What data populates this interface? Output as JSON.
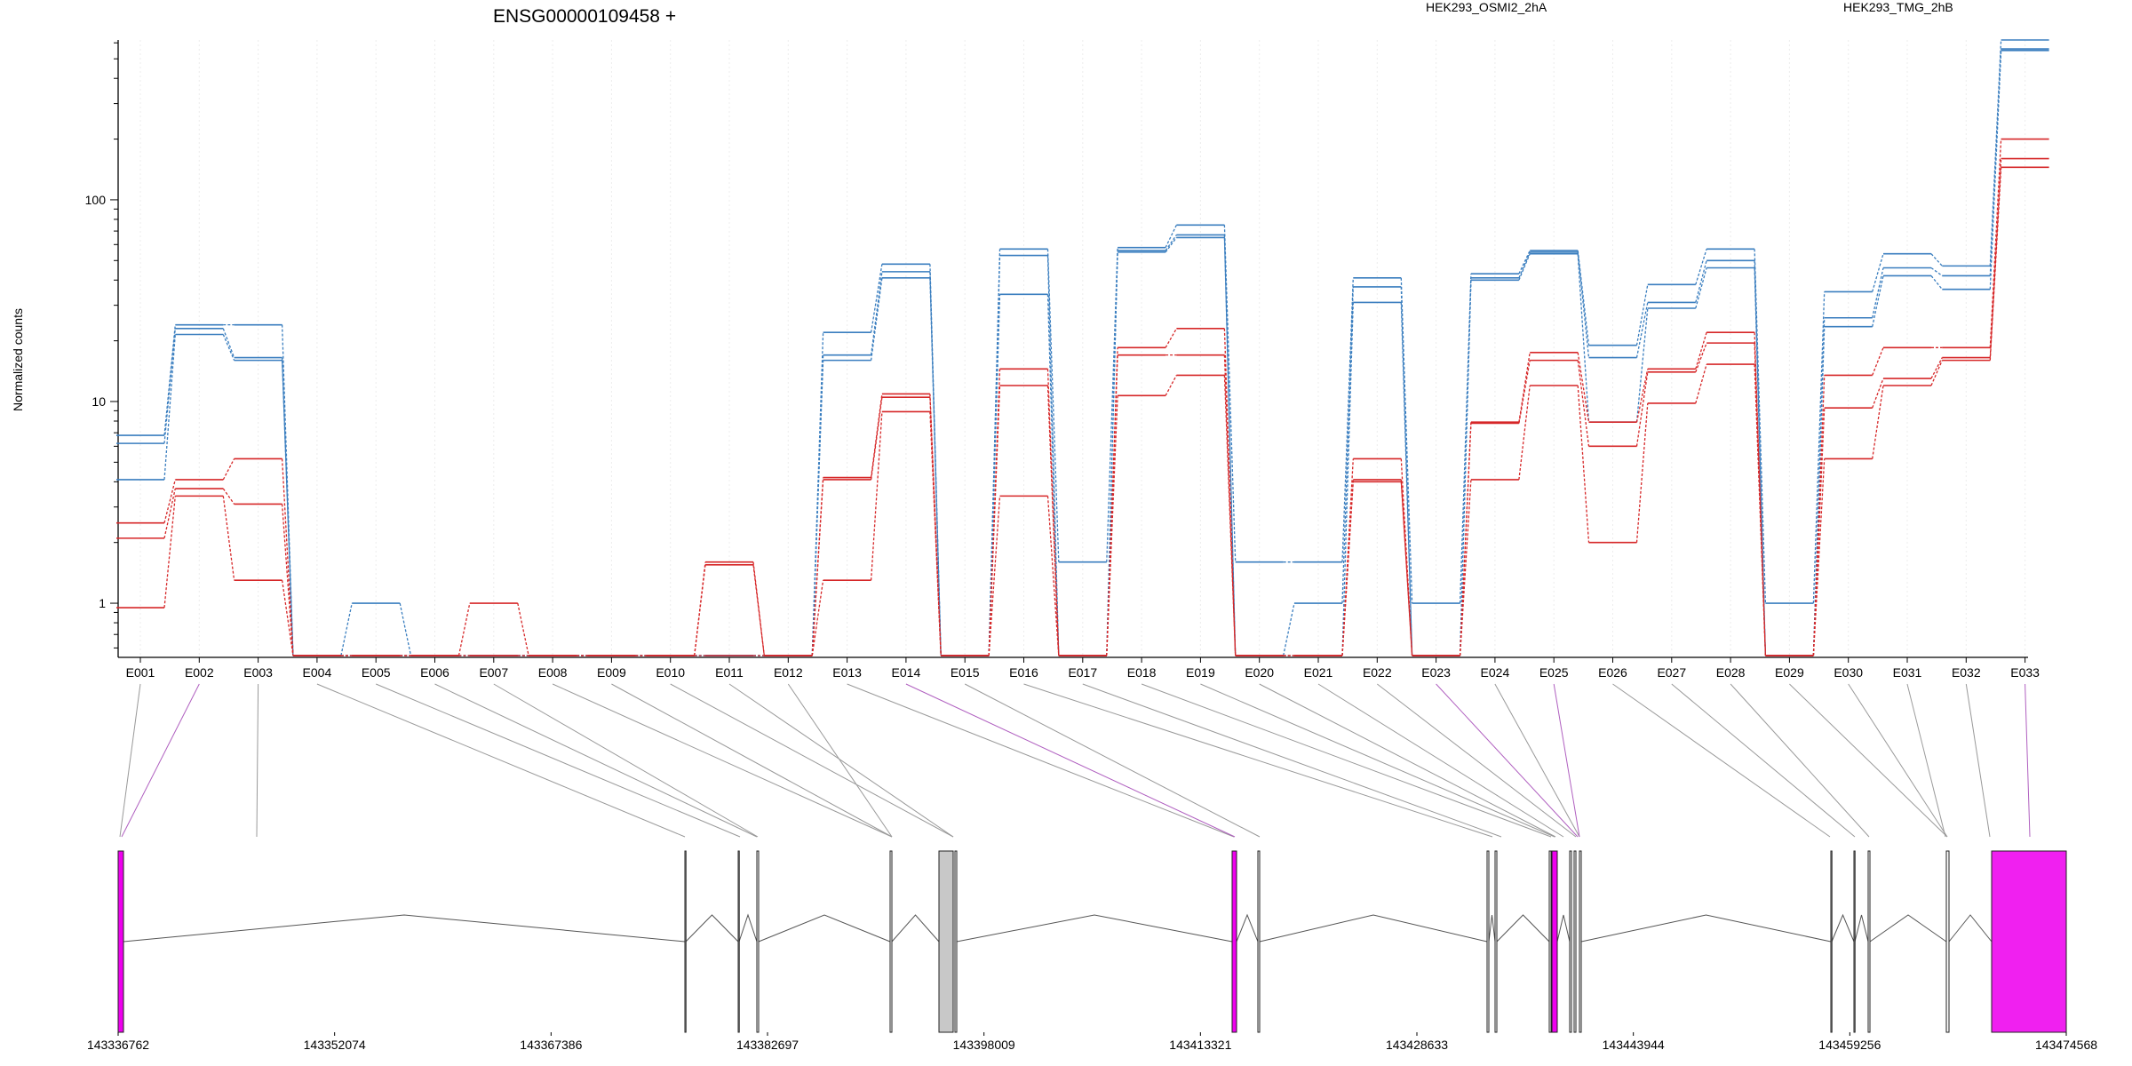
{
  "chart_data": {
    "type": "line",
    "title": "ENSG00000109458 +",
    "ylabel": "Normalized counts",
    "xlabel": "",
    "yscale": "log",
    "ylim": [
      0.55,
      620
    ],
    "y_ticks": [
      1,
      10,
      100
    ],
    "y_tick_labels": [
      "1",
      "10",
      "100"
    ],
    "grid": "vertical dotted lines at each exon",
    "legend": "top-right, text only",
    "categories": [
      "E001",
      "E002",
      "E003",
      "E004",
      "E005",
      "E006",
      "E007",
      "E008",
      "E009",
      "E010",
      "E011",
      "E012",
      "E013",
      "E014",
      "E015",
      "E016",
      "E017",
      "E018",
      "E019",
      "E020",
      "E021",
      "E022",
      "E023",
      "E024",
      "E025",
      "E026",
      "E027",
      "E028",
      "E029",
      "E030",
      "E031",
      "E032",
      "E033"
    ],
    "groups": [
      {
        "name": "HEK293_OSMI2_2hA",
        "color": "#d62728"
      },
      {
        "name": "HEK293_TMG_2hB",
        "color": "#3a7ebf"
      }
    ],
    "series": [
      {
        "group": "HEK293_TMG_2hB",
        "values": [
          6.8,
          24,
          24,
          0.55,
          1.0,
          0.55,
          0.55,
          0.55,
          0.55,
          0.55,
          0.55,
          0.55,
          22,
          48,
          0.55,
          57,
          1.6,
          58,
          75,
          1.6,
          1.6,
          41,
          1.0,
          43,
          56,
          19,
          38,
          57,
          1.0,
          35,
          54,
          47,
          620
        ]
      },
      {
        "group": "HEK293_TMG_2hB",
        "values": [
          6.2,
          23,
          16.5,
          0.55,
          0.55,
          0.55,
          0.55,
          0.55,
          0.55,
          0.55,
          0.55,
          0.55,
          17,
          44,
          0.55,
          53,
          0.55,
          56,
          67,
          0.55,
          1.0,
          37,
          0.55,
          41,
          55,
          16.5,
          31,
          50,
          0.55,
          26,
          46,
          42,
          560
        ]
      },
      {
        "group": "HEK293_TMG_2hB",
        "values": [
          4.1,
          21.5,
          16,
          0.55,
          0.55,
          0.55,
          0.55,
          0.55,
          0.55,
          0.55,
          0.55,
          0.55,
          16,
          41,
          0.55,
          34,
          0.55,
          55,
          65,
          0.55,
          0.55,
          31,
          0.55,
          40,
          54,
          7.9,
          29,
          46,
          0.55,
          23.5,
          42,
          36,
          550
        ]
      },
      {
        "group": "HEK293_OSMI2_2hA",
        "values": [
          2.5,
          4.1,
          5.2,
          0.55,
          0.55,
          0.55,
          1.0,
          0.55,
          0.55,
          0.55,
          1.6,
          0.55,
          4.2,
          10.9,
          0.55,
          14.5,
          0.55,
          18.5,
          23,
          0.55,
          0.55,
          5.2,
          0.55,
          7.9,
          17.5,
          7.9,
          14.5,
          22,
          0.55,
          13.5,
          18.5,
          18.5,
          200
        ]
      },
      {
        "group": "HEK293_OSMI2_2hA",
        "values": [
          2.1,
          3.7,
          3.1,
          0.55,
          0.55,
          0.55,
          0.55,
          0.55,
          0.55,
          0.55,
          1.55,
          0.55,
          4.1,
          10.5,
          0.55,
          12,
          0.55,
          17,
          17,
          0.55,
          0.55,
          4.1,
          0.55,
          7.8,
          16,
          6,
          14,
          19.5,
          0.55,
          9.3,
          13,
          16.5,
          160
        ]
      },
      {
        "group": "HEK293_OSMI2_2hA",
        "values": [
          0.95,
          3.4,
          1.3,
          0.55,
          0.55,
          0.55,
          0.55,
          0.55,
          0.55,
          0.55,
          0.55,
          0.55,
          1.3,
          8.9,
          0.55,
          3.4,
          0.55,
          10.7,
          13.5,
          0.55,
          0.55,
          4.0,
          0.55,
          4.1,
          12,
          2.0,
          9.8,
          15.3,
          0.55,
          5.2,
          12,
          16,
          145
        ]
      }
    ],
    "gene_model": {
      "x_tick_labels": [
        "143336762",
        "143352074",
        "143367386",
        "143382697",
        "143398009",
        "143413321",
        "143428633",
        "143443944",
        "143459256",
        "143474568"
      ]
    }
  }
}
